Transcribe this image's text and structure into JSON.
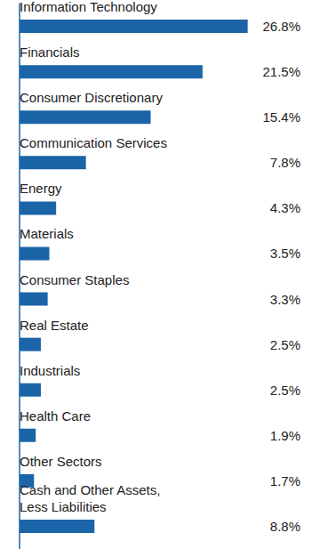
{
  "chart_data": {
    "type": "bar",
    "orientation": "horizontal",
    "categories": [
      "Information Technology",
      "Financials",
      "Consumer Discretionary",
      "Communication Services",
      "Energy",
      "Materials",
      "Consumer Staples",
      "Real Estate",
      "Industrials",
      "Health Care",
      "Other Sectors",
      "Cash and Other Assets,\nLess Liabilities"
    ],
    "values": [
      26.8,
      21.5,
      15.4,
      7.8,
      4.3,
      3.5,
      3.3,
      2.5,
      2.5,
      1.9,
      1.7,
      8.8
    ],
    "value_labels": [
      "26.8%",
      "21.5%",
      "15.4%",
      "7.8%",
      "4.3%",
      "3.5%",
      "3.3%",
      "2.5%",
      "2.5%",
      "1.9%",
      "1.7%",
      "8.8%"
    ],
    "color": "#1b64a8",
    "xlim": [
      0,
      33
    ],
    "grid": false,
    "data_labels": true,
    "tick_labels": "y"
  }
}
